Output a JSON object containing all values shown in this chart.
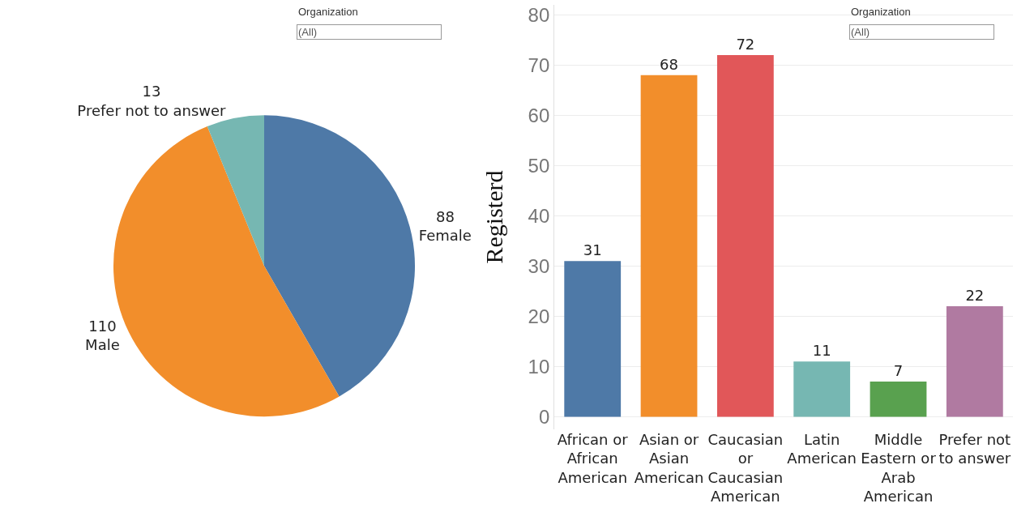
{
  "chart_data": [
    {
      "type": "pie",
      "categories": [
        "Female",
        "Male",
        "Prefer not to answer"
      ],
      "values": [
        88,
        110,
        13
      ],
      "colors": [
        "#4e79a7",
        "#f28e2b",
        "#76b7b2"
      ],
      "data_labels": true,
      "annotations": [
        "Organization",
        "(All)"
      ]
    },
    {
      "type": "bar",
      "categories": [
        "African or African American",
        "Asian or Asian American",
        "Caucasian or Caucasian American",
        "Latin American",
        "Middle Eastern or Arab American",
        "Prefer not to answer"
      ],
      "values": [
        31,
        68,
        72,
        11,
        7,
        22
      ],
      "colors": [
        "#4e79a7",
        "#f28e2b",
        "#e15759",
        "#76b7b2",
        "#59a14f",
        "#b07aa1"
      ],
      "ylabel": "Registerd",
      "ylim": [
        -2.5,
        82
      ],
      "yticks": [
        0,
        10,
        20,
        30,
        40,
        50,
        60,
        70,
        80
      ],
      "grid": "y",
      "data_labels": true,
      "annotations": [
        "Organization",
        "(All)"
      ]
    }
  ]
}
